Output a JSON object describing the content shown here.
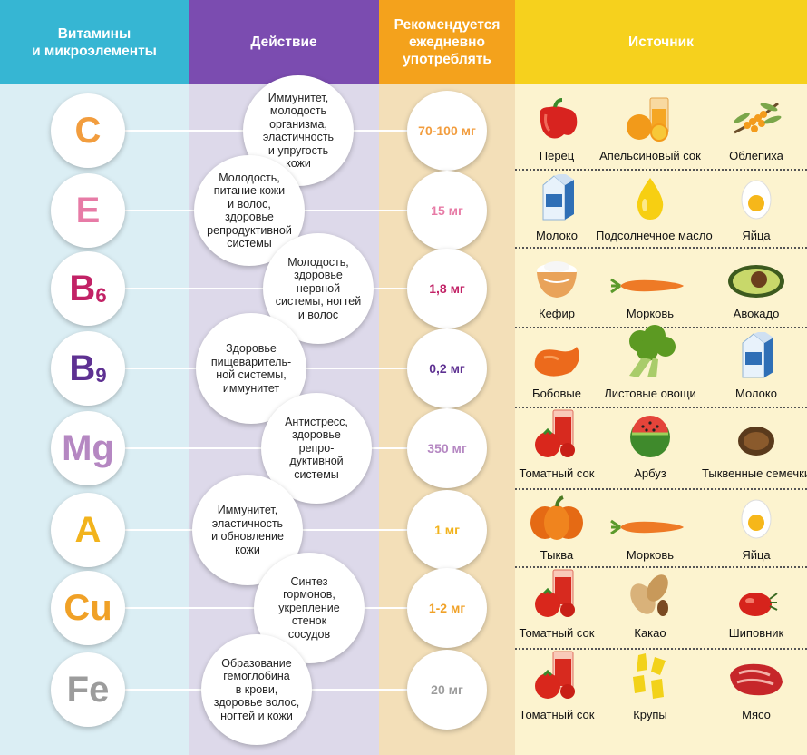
{
  "headers": {
    "vitamins": "Витамины\nи микроэлементы",
    "action": "Действие",
    "dose": "Рекомендуется\nежедневно\nупотреблять",
    "source": "Источник"
  },
  "colors": {
    "C": "#f29d3e",
    "E": "#e77ba6",
    "B6": "#c22266",
    "B9": "#5e3192",
    "Mg": "#b587c2",
    "A": "#f2b31c",
    "Cu": "#f0a127",
    "Fe": "#9c9c9c"
  },
  "rows": [
    {
      "symbol": "C",
      "sub": "",
      "action": "Иммунитет,\nмолодость\nорганизма,\nэластичность\nи упругость\nкожи",
      "dose": "70-100 мг",
      "sources": [
        {
          "name": "Перец",
          "icon": "red-pepper-icon"
        },
        {
          "name": "Апельсиновый сок",
          "icon": "orange-juice-icon"
        },
        {
          "name": "Облепиха",
          "icon": "sea-buckthorn-icon"
        }
      ]
    },
    {
      "symbol": "E",
      "sub": "",
      "action": "Молодость,\nпитание кожи\nи волос,\nздоровье\nрепродуктивной\nсистемы",
      "dose": "15 мг",
      "sources": [
        {
          "name": "Молоко",
          "icon": "milk-carton-icon"
        },
        {
          "name": "Подсолнечное масло",
          "icon": "oil-drop-icon"
        },
        {
          "name": "Яйца",
          "icon": "egg-icon"
        }
      ]
    },
    {
      "symbol": "B",
      "sub": "6",
      "action": "Молодость,\nздоровье\nнервной\nсистемы, ногтей\nи волос",
      "dose": "1,8 мг",
      "sources": [
        {
          "name": "Кефир",
          "icon": "kefir-bowl-icon"
        },
        {
          "name": "Морковь",
          "icon": "carrot-icon"
        },
        {
          "name": "Авокадо",
          "icon": "avocado-icon"
        }
      ]
    },
    {
      "symbol": "B",
      "sub": "9",
      "action": "Здоровье\nпищеваритель-\nной системы,\nиммунитет",
      "dose": "0,2 мг",
      "sources": [
        {
          "name": "Бобовые",
          "icon": "bean-icon"
        },
        {
          "name": "Листовые овощи",
          "icon": "broccoli-icon"
        },
        {
          "name": "Молоко",
          "icon": "milk-carton-icon"
        }
      ]
    },
    {
      "symbol": "Mg",
      "sub": "",
      "action": "Антистресс,\nздоровье\nрепро-\nдуктивной\nсистемы",
      "dose": "350 мг",
      "sources": [
        {
          "name": "Томатный сок",
          "icon": "tomato-juice-icon"
        },
        {
          "name": "Арбуз",
          "icon": "watermelon-icon"
        },
        {
          "name": "Тыквенные семечки",
          "icon": "pumpkin-seeds-icon"
        }
      ]
    },
    {
      "symbol": "A",
      "sub": "",
      "action": "Иммунитет,\nэластичность\nи обновление\nкожи",
      "dose": "1 мг",
      "sources": [
        {
          "name": "Тыква",
          "icon": "pumpkin-icon"
        },
        {
          "name": "Морковь",
          "icon": "carrot-icon"
        },
        {
          "name": "Яйца",
          "icon": "egg-icon"
        }
      ]
    },
    {
      "symbol": "Cu",
      "sub": "",
      "action": "Синтез\nгормонов,\nукрепление\nстенок\nсосудов",
      "dose": "1-2 мг",
      "sources": [
        {
          "name": "Томатный сок",
          "icon": "tomato-juice-icon"
        },
        {
          "name": "Какао",
          "icon": "cocoa-icon"
        },
        {
          "name": "Шиповник",
          "icon": "rosehip-icon"
        }
      ]
    },
    {
      "symbol": "Fe",
      "sub": "",
      "action": "Образование\nгемоглобина\nв крови,\nздоровье волос,\nногтей и кожи",
      "dose": "20 мг",
      "sources": [
        {
          "name": "Томатный сок",
          "icon": "tomato-juice-icon"
        },
        {
          "name": "Крупы",
          "icon": "cereal-icon"
        },
        {
          "name": "Мясо",
          "icon": "meat-icon"
        }
      ]
    }
  ]
}
